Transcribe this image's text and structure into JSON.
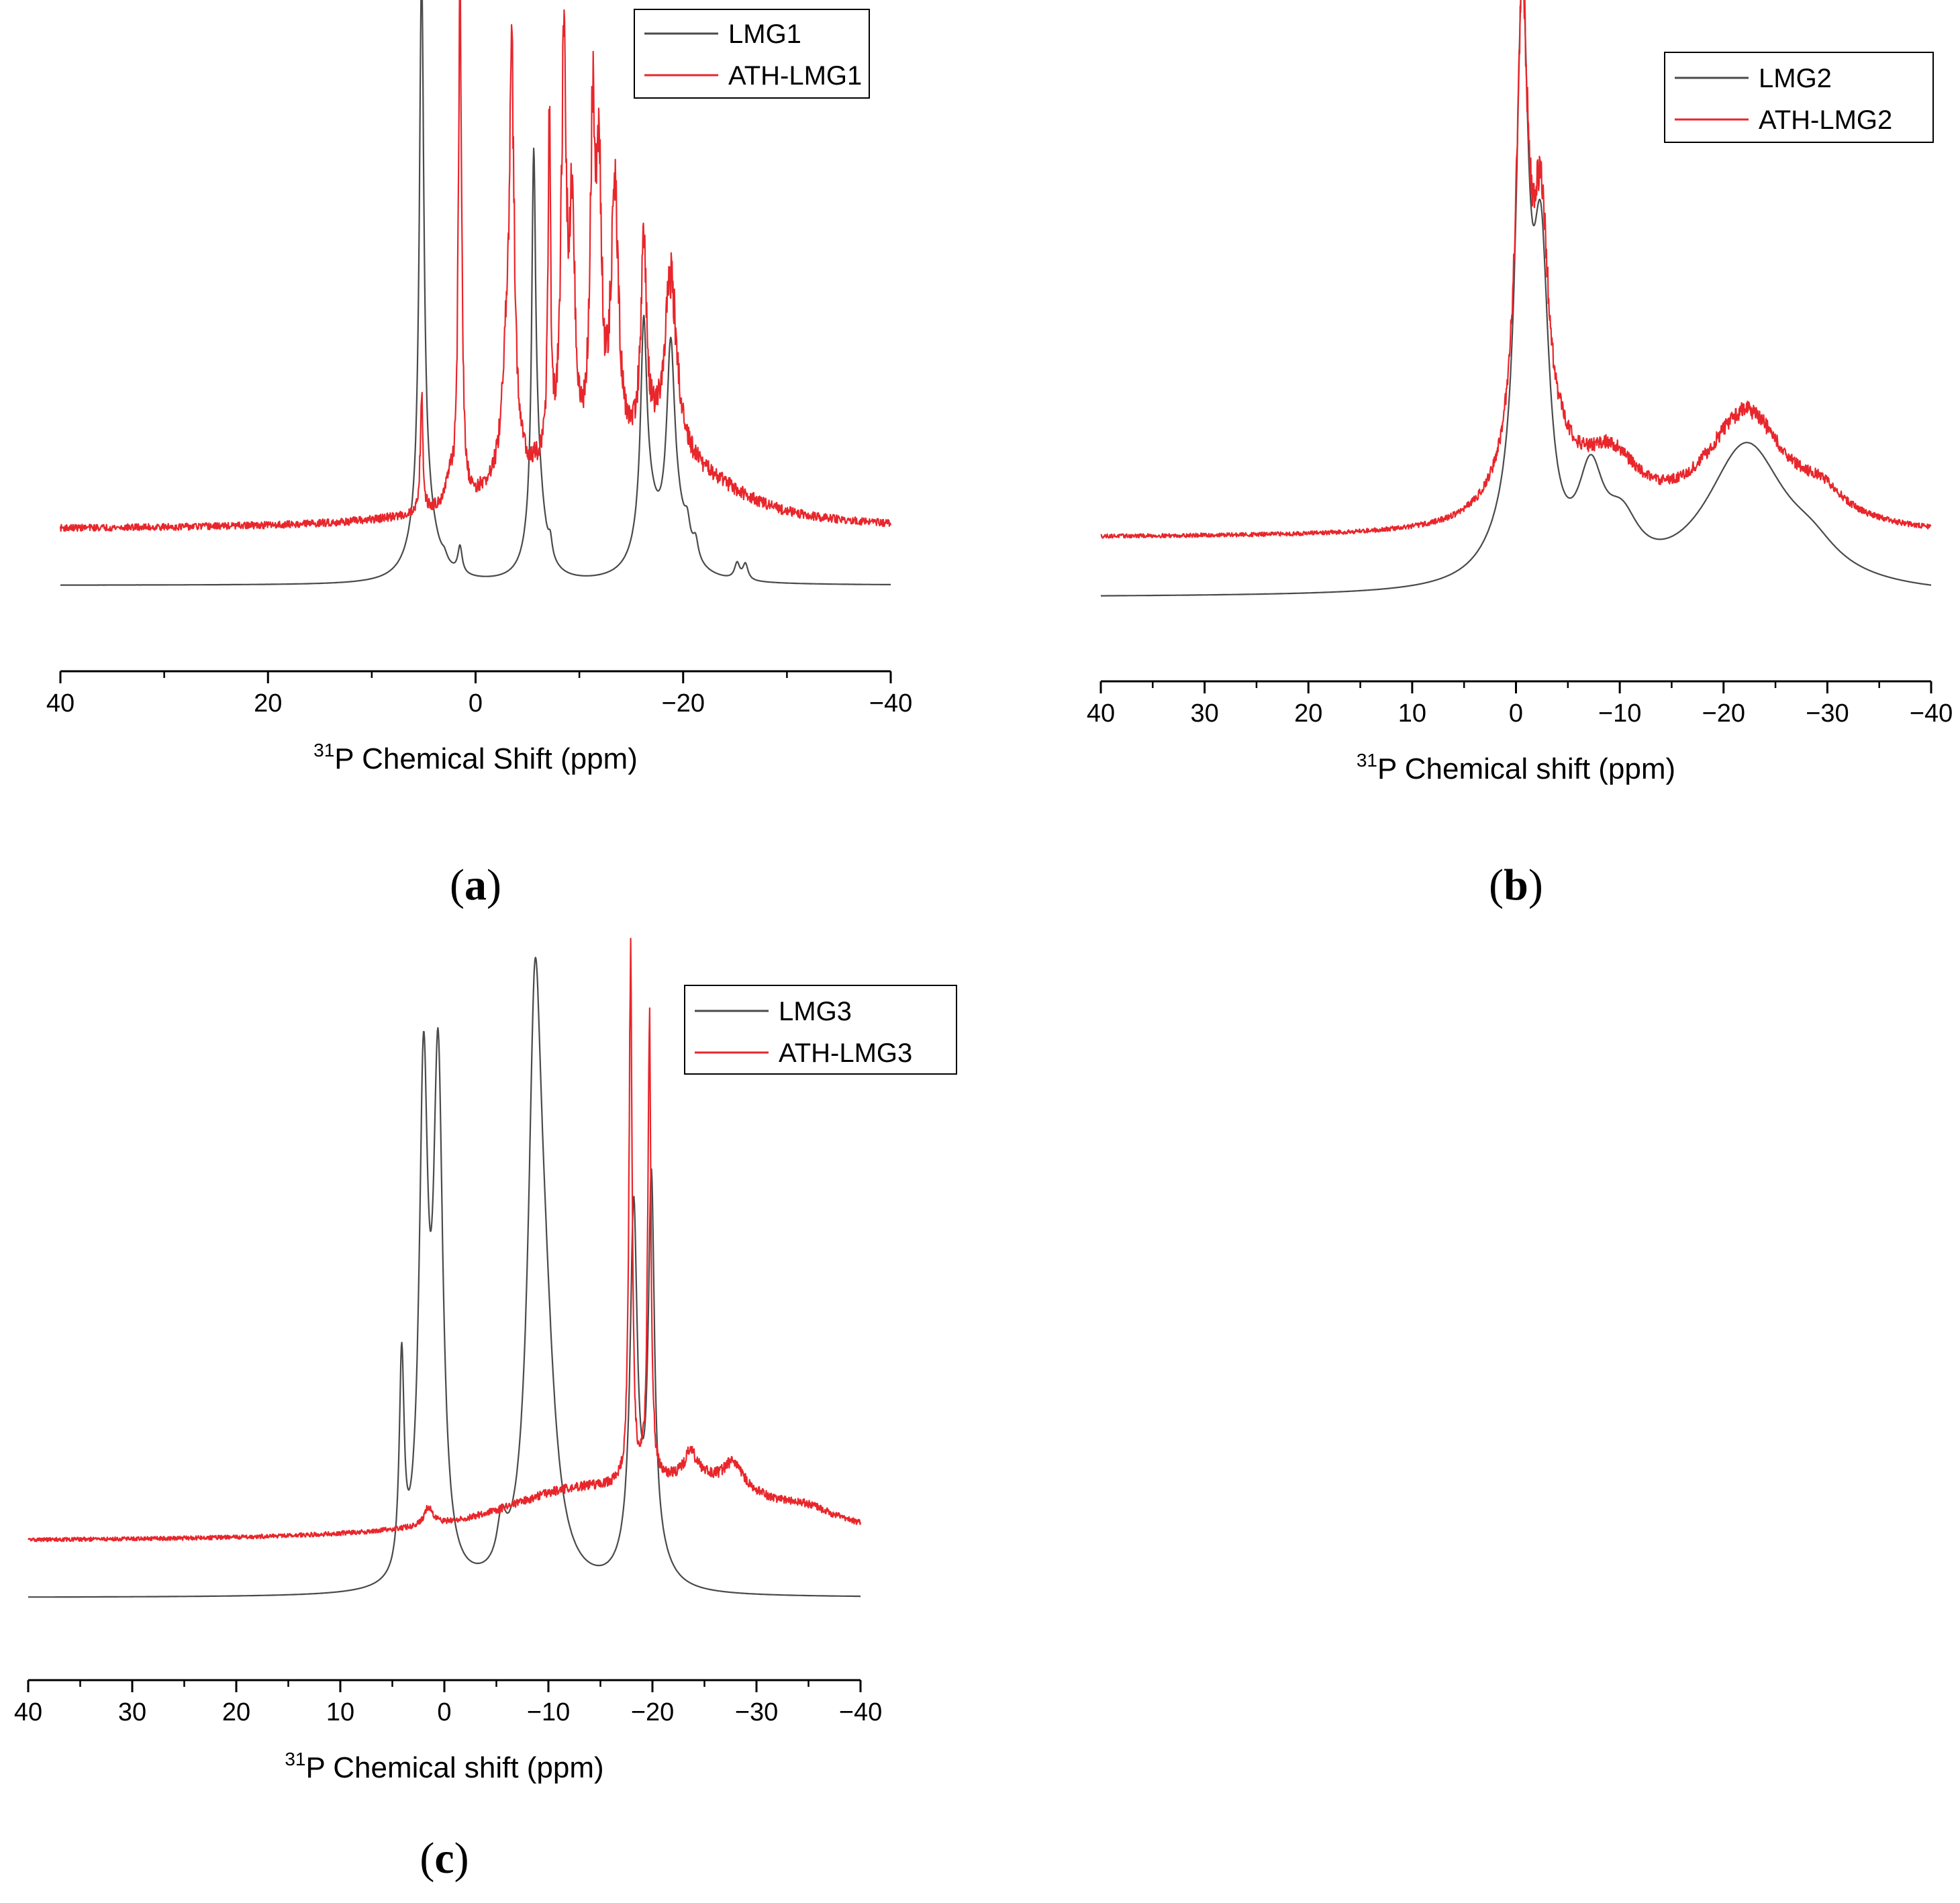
{
  "colors": {
    "LMG": "#4a4a4a",
    "ATH": "#e8262b"
  },
  "chart_data": [
    {
      "type": "line",
      "panel_label": "a",
      "xlabel": {
        "sup": "31",
        "rest": "P Chemical Shift (ppm)"
      },
      "xlim": [
        40,
        -40
      ],
      "xticks": [
        40,
        20,
        0,
        -20,
        -40
      ],
      "xtick_labels": [
        "40",
        "20",
        "0",
        "−20",
        "−40"
      ],
      "legend": "top-right",
      "series": [
        {
          "name": "LMG1",
          "color": "#4a4a4a",
          "baseline": 0,
          "noise": 0.0015,
          "peaks": [
            [
              5.2,
              100,
              0.25
            ],
            [
              5.0,
              16,
              1.2
            ],
            [
              3.0,
              1.2,
              0.3
            ],
            [
              1.5,
              5,
              0.25
            ],
            [
              -5.6,
              64,
              0.22
            ],
            [
              -5.9,
              20,
              0.8
            ],
            [
              -7.2,
              3,
              0.2
            ],
            [
              -16.2,
              37,
              0.35
            ],
            [
              -16.6,
              12,
              1.2
            ],
            [
              -18.8,
              34,
              0.45
            ],
            [
              -19.3,
              10,
              1.4
            ],
            [
              -20.4,
              4,
              0.3
            ],
            [
              -21.2,
              3.5,
              0.3
            ],
            [
              -25.2,
              3,
              0.3
            ],
            [
              -26.0,
              3,
              0.3
            ]
          ]
        },
        {
          "name": "ATH-LMG1",
          "color": "#e8262b",
          "baseline": 10.5,
          "noise": 0.6,
          "peaks": [
            [
              -6.5,
              8,
              7
            ],
            [
              -16,
              7,
              5
            ],
            [
              -20,
              5,
              5
            ],
            [
              -24,
              2,
              5
            ],
            [
              5.2,
              22,
              0.15
            ],
            [
              1.5,
              101,
              0.18
            ],
            [
              2.5,
              4,
              0.5
            ],
            [
              -3.5,
              64,
              0.28
            ],
            [
              -3.1,
              22,
              0.6
            ],
            [
              -7.1,
              64,
              0.15
            ],
            [
              -8.5,
              74,
              0.3
            ],
            [
              -9.3,
              45,
              0.3
            ],
            [
              -11.3,
              60,
              0.3
            ],
            [
              -11.9,
              47,
              0.3
            ],
            [
              -13.4,
              49,
              0.45
            ],
            [
              -16.2,
              36,
              0.35
            ],
            [
              -18.8,
              34,
              0.7
            ]
          ]
        }
      ]
    },
    {
      "type": "line",
      "panel_label": "b",
      "xlabel": {
        "sup": "31",
        "rest": "P Chemical shift (ppm)"
      },
      "xlim": [
        40,
        -40
      ],
      "xticks": [
        40,
        30,
        20,
        10,
        0,
        -10,
        -20,
        -30,
        -40
      ],
      "xtick_labels": [
        "40",
        "30",
        "20",
        "10",
        "0",
        "−10",
        "−20",
        "−30",
        "−40"
      ],
      "legend": "top-right",
      "series": [
        {
          "name": "LMG2",
          "color": "#4a4a4a",
          "baseline": 0,
          "noise": 0.0015,
          "peaks": [
            [
              -0.6,
              95,
              0.7
            ],
            [
              -2.4,
              52,
              0.9
            ],
            [
              0.3,
              8,
              3
            ],
            [
              -7.2,
              17,
              1.5
            ],
            [
              -10.2,
              9,
              2
            ],
            [
              -22.2,
              27,
              4.8
            ],
            [
              -28.5,
              4,
              3
            ]
          ]
        },
        {
          "name": "ATH-LMG2",
          "color": "#e8262b",
          "baseline": 11,
          "noise": 0.35,
          "peaks": [
            [
              -0.6,
              85,
              0.7
            ],
            [
              -2.4,
              46,
              0.9
            ],
            [
              0.3,
              6,
              3
            ],
            [
              -4.5,
              6,
              2
            ],
            [
              -9,
              12,
              3.5
            ],
            [
              -22.2,
              22,
              4.8
            ],
            [
              -29.5,
              4,
              2.5
            ]
          ]
        }
      ]
    },
    {
      "type": "line",
      "panel_label": "c",
      "xlabel": {
        "sup": "31",
        "rest": "P Chemical shift (ppm)"
      },
      "xlim": [
        40,
        -40
      ],
      "xticks": [
        40,
        30,
        20,
        10,
        0,
        -10,
        -20,
        -30,
        -40
      ],
      "xtick_labels": [
        "40",
        "30",
        "20",
        "10",
        "0",
        "−10",
        "−20",
        "−30",
        "−40"
      ],
      "legend": "top-right",
      "series": [
        {
          "name": "LMG3",
          "color": "#4a4a4a",
          "baseline": 0,
          "noise": 0.0015,
          "peaks": [
            [
              4.1,
              40,
              0.28
            ],
            [
              2.0,
              92,
              0.5
            ],
            [
              0.6,
              95,
              0.55
            ],
            [
              -5.5,
              8,
              0.5
            ],
            [
              -8.7,
              93,
              0.75
            ],
            [
              -9.6,
              40,
              1.2
            ],
            [
              -18.2,
              64,
              0.4
            ],
            [
              -19.9,
              70,
              0.35
            ],
            [
              -18.3,
              6,
              1.5
            ],
            [
              -20.5,
              4,
              1.5
            ]
          ]
        },
        {
          "name": "ATH-LMG3",
          "color": "#e8262b",
          "baseline": 10.5,
          "noise": 0.35,
          "peaks": [
            [
              1.5,
              3.5,
              0.5
            ],
            [
              -12,
              7,
              9
            ],
            [
              -25,
              9,
              9
            ],
            [
              -35,
              2,
              3
            ],
            [
              -17.9,
              100,
              0.18
            ],
            [
              -19.7,
              88,
              0.18
            ],
            [
              -23.7,
              5,
              0.8
            ],
            [
              -27.8,
              5,
              1
            ]
          ]
        }
      ]
    }
  ]
}
